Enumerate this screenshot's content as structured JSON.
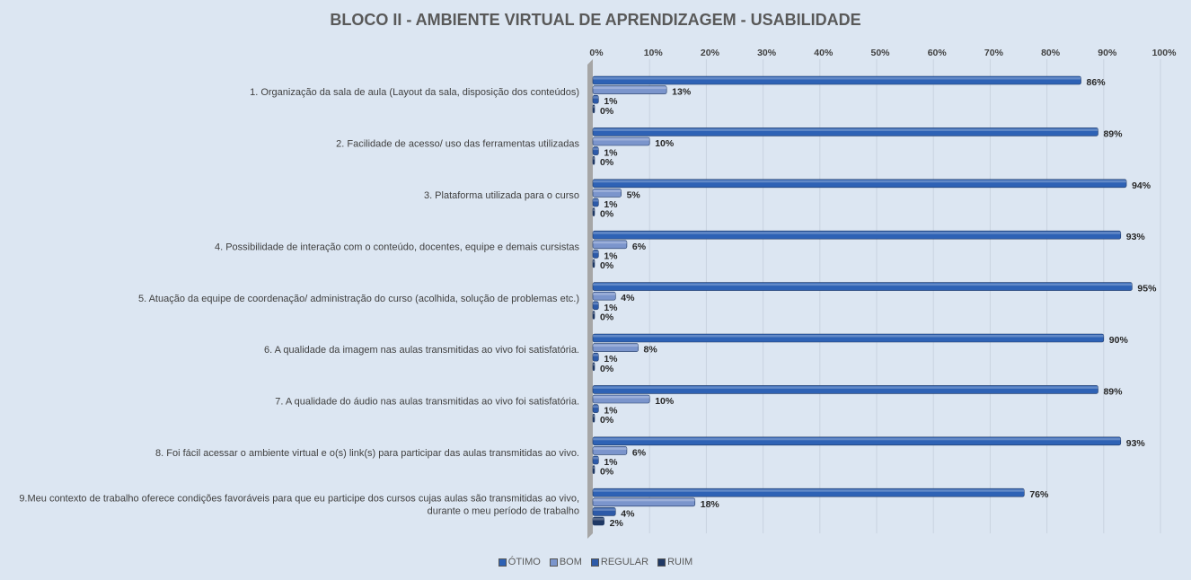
{
  "chart_data": {
    "type": "bar",
    "orientation": "horizontal",
    "title": "BLOCO II - AMBIENTE VIRTUAL DE APRENDIZAGEM - USABILIDADE",
    "xlabel": "",
    "ylabel": "",
    "xlim": [
      0,
      100
    ],
    "x_ticks": [
      "0%",
      "10%",
      "20%",
      "30%",
      "40%",
      "50%",
      "60%",
      "70%",
      "80%",
      "90%",
      "100%"
    ],
    "x_axis_position": "top",
    "grid": true,
    "legend_position": "bottom",
    "categories": [
      [
        "1. Organização da sala de aula (Layout da sala, disposição dos conteúdos)"
      ],
      [
        "2. Facilidade de acesso/ uso das ferramentas utilizadas"
      ],
      [
        "3. Plataforma utilizada para o curso"
      ],
      [
        "4. Possibilidade de interação com o conteúdo, docentes, equipe e demais cursistas"
      ],
      [
        "5. Atuação da equipe de coordenação/ administração do curso (acolhida, solução de problemas etc.)"
      ],
      [
        "6. A qualidade da imagem nas aulas transmitidas ao vivo foi satisfatória."
      ],
      [
        "7. A qualidade do áudio nas aulas transmitidas ao vivo foi satisfatória."
      ],
      [
        "8. Foi fácil acessar o ambiente virtual e o(s) link(s) para participar das aulas transmitidas ao vivo."
      ],
      [
        "9.Meu contexto de trabalho oferece condições favoráveis para que eu participe dos cursos cujas aulas são transmitidas ao vivo,",
        "durante o meu período de trabalho"
      ]
    ],
    "series": [
      {
        "name": "ÓTIMO",
        "color": "#2e62b5",
        "values": [
          86,
          89,
          94,
          93,
          95,
          90,
          89,
          93,
          76
        ]
      },
      {
        "name": "BOM",
        "color": "#7b95cc",
        "values": [
          13,
          10,
          5,
          6,
          4,
          8,
          10,
          6,
          18
        ]
      },
      {
        "name": "REGULAR",
        "color": "#2d5aa8",
        "values": [
          1,
          1,
          1,
          1,
          1,
          1,
          1,
          1,
          4
        ]
      },
      {
        "name": "RUIM",
        "color": "#1f3864",
        "values": [
          0,
          0,
          0,
          0,
          0,
          0,
          0,
          0,
          2
        ]
      }
    ]
  }
}
